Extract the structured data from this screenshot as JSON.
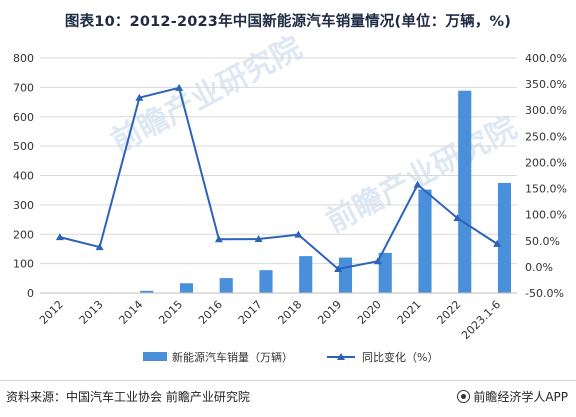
{
  "title": "图表10：2012-2023年中国新能源汽车销量情况(单位：万辆，%)",
  "watermark": "前瞻产业研究院",
  "source": "资料来源：中国汽车工业协会 前瞻产业研究院",
  "brand": "前瞻经济学人APP",
  "chart_data": {
    "type": "bar",
    "categories": [
      "2012",
      "2013",
      "2014",
      "2015",
      "2016",
      "2017",
      "2018",
      "2019",
      "2020",
      "2021",
      "2022",
      "2023.1-6"
    ],
    "series": [
      {
        "name": "新能源汽车销量（万辆）",
        "type": "bar",
        "axis": "left",
        "values": [
          1.3,
          1.8,
          7.5,
          33.1,
          50.7,
          77.7,
          125.6,
          120.6,
          136.7,
          352.1,
          688.7,
          374.7
        ]
      },
      {
        "name": "同比变化（%）",
        "type": "line",
        "axis": "right",
        "values": [
          57.0,
          37.9,
          324.0,
          342.9,
          53.0,
          53.3,
          61.7,
          -4.0,
          10.9,
          157.5,
          93.4,
          44.1
        ]
      }
    ],
    "yleft": {
      "min": 0,
      "max": 800,
      "step": 100,
      "ticks": [
        "0",
        "100",
        "200",
        "300",
        "400",
        "500",
        "600",
        "700",
        "800"
      ]
    },
    "yright": {
      "min": -50,
      "max": 400,
      "step": 50,
      "ticks": [
        "-50.0%",
        "0.0%",
        "50.0%",
        "100.0%",
        "150.0%",
        "200.0%",
        "250.0%",
        "300.0%",
        "350.0%",
        "400.0%"
      ]
    },
    "colors": {
      "bar": "#4a8fd9",
      "line": "#2c63b8",
      "grid": "#d9d9d9",
      "axis_text": "#333333"
    },
    "legend_position": "bottom",
    "grid": true
  }
}
